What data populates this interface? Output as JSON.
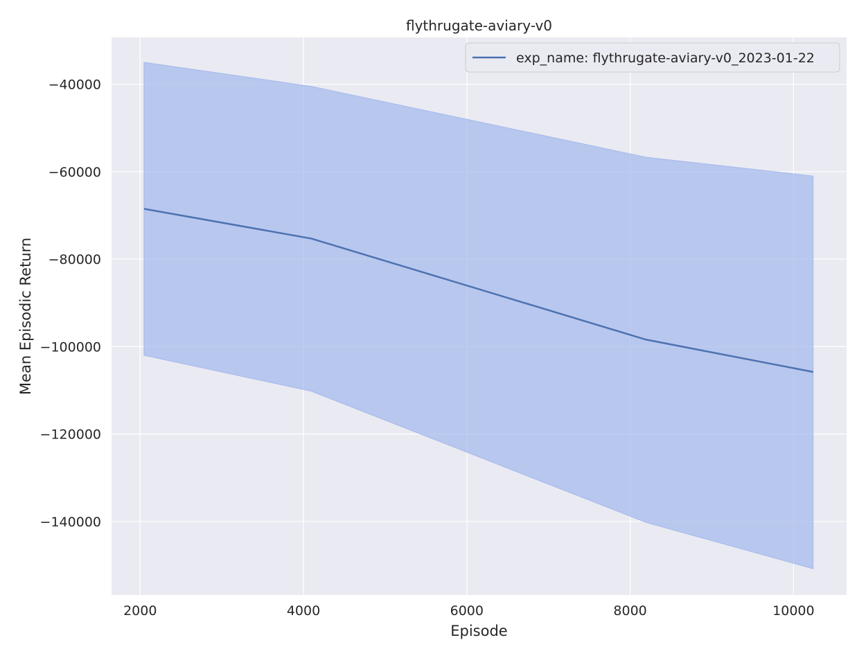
{
  "chart_data": {
    "type": "line",
    "title": "flythrugate-aviary-v0",
    "xlabel": "Episode",
    "ylabel": "Mean Episodic Return",
    "xlim": [
      1650,
      10650
    ],
    "ylim": [
      -156800,
      -29300
    ],
    "xticks": [
      2000,
      4000,
      6000,
      8000,
      10000
    ],
    "yticks": [
      -40000,
      -60000,
      -80000,
      -100000,
      -120000,
      -140000
    ],
    "xtick_labels": [
      "2000",
      "4000",
      "6000",
      "8000",
      "10000"
    ],
    "ytick_labels": [
      "−40000",
      "−60000",
      "−80000",
      "−100000",
      "−120000",
      "−140000"
    ],
    "grid": true,
    "legend_position": "top-right",
    "series": [
      {
        "name": "exp_name: flythrugate-aviary-v0_2023-01-22",
        "color": "#4c72b0",
        "band_color": "#a2b8ec",
        "x": [
          2048,
          4096,
          8192,
          10240
        ],
        "y": [
          -68500,
          -75300,
          -98400,
          -105800
        ],
        "y_upper": [
          -35000,
          -40500,
          -56700,
          -61000
        ],
        "y_lower": [
          -102000,
          -110200,
          -140200,
          -150800
        ]
      }
    ]
  }
}
